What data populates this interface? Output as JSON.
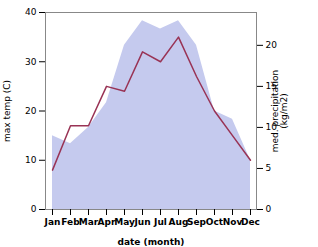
{
  "chart_data": {
    "type": "line",
    "categories": [
      "Jan",
      "Feb",
      "Mar",
      "Apr",
      "May",
      "Jun",
      "Jul",
      "Aug",
      "Sep",
      "Oct",
      "Nov",
      "Dec"
    ],
    "xlabel": "date (month)",
    "ylabel": "max temp (C)",
    "y2label": "med. precipitation\n(kg/m2)",
    "ylim": [
      0,
      40
    ],
    "yticks": [
      0,
      10,
      20,
      30,
      40
    ],
    "y2lim": [
      0,
      24
    ],
    "y2ticks": [
      0,
      5,
      10,
      15,
      20
    ],
    "series": [
      {
        "type": "area",
        "axis": "y2",
        "color": "#c5caee",
        "values": [
          9,
          8,
          10,
          13,
          20,
          23,
          22,
          23,
          20,
          12,
          11,
          6
        ]
      },
      {
        "type": "line",
        "color": "#993355",
        "values": [
          8,
          17,
          17,
          25,
          24,
          32,
          30,
          35,
          27,
          20,
          15,
          10
        ]
      }
    ]
  }
}
